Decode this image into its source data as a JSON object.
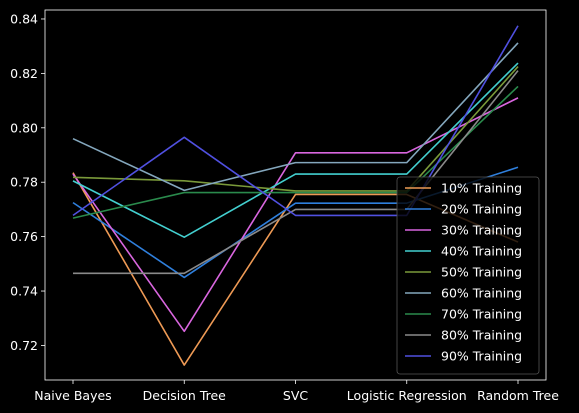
{
  "chart_data": {
    "type": "line",
    "categories": [
      "Naive Bayes",
      "Decision Tree",
      "SVC",
      "Logistic Regression",
      "Random Tree"
    ],
    "title": "",
    "xlabel": "",
    "ylabel": "",
    "ylim": [
      0.7073,
      0.8433
    ],
    "yticks": [
      0.72,
      0.74,
      0.76,
      0.78,
      0.8,
      0.82,
      0.84
    ],
    "grid": false,
    "legend": "lower-right",
    "background": "#000000",
    "foreground": "#ffffff",
    "series": [
      {
        "name": "10% Training",
        "color": "#ee9a55",
        "values": [
          0.7835,
          0.7128,
          0.7755,
          0.7755,
          0.758
        ]
      },
      {
        "name": "20% Training",
        "color": "#2f7fdc",
        "values": [
          0.7725,
          0.745,
          0.7723,
          0.7723,
          0.7855
        ]
      },
      {
        "name": "30% Training",
        "color": "#d966df",
        "values": [
          0.783,
          0.7252,
          0.7908,
          0.7908,
          0.811
        ]
      },
      {
        "name": "40% Training",
        "color": "#43cfcf",
        "values": [
          0.7805,
          0.7598,
          0.783,
          0.783,
          0.8238
        ]
      },
      {
        "name": "50% Training",
        "color": "#7a9a3a",
        "values": [
          0.7818,
          0.7805,
          0.7768,
          0.7768,
          0.8225
        ]
      },
      {
        "name": "60% Training",
        "color": "#84a7bd",
        "values": [
          0.796,
          0.777,
          0.7872,
          0.7872,
          0.8312
        ]
      },
      {
        "name": "70% Training",
        "color": "#2a8a4c",
        "values": [
          0.7668,
          0.7762,
          0.7762,
          0.7762,
          0.8152
        ]
      },
      {
        "name": "80% Training",
        "color": "#8a8a8a",
        "values": [
          0.7465,
          0.7465,
          0.77,
          0.77,
          0.821
        ]
      },
      {
        "name": "90% Training",
        "color": "#5050e0",
        "values": [
          0.7678,
          0.7965,
          0.7678,
          0.7678,
          0.8375
        ]
      }
    ]
  }
}
